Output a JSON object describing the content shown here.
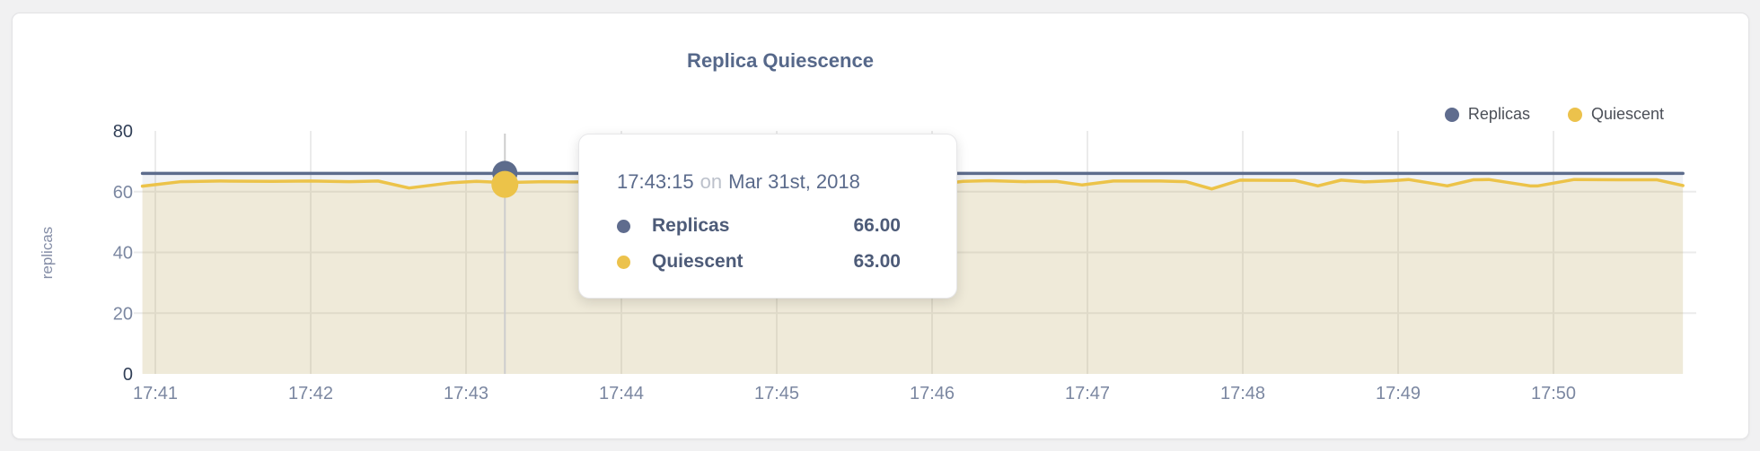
{
  "page": {
    "title": "Replica Quiescence"
  },
  "legend": {
    "items": [
      {
        "label": "Replicas",
        "color": "#5f6c8e"
      },
      {
        "label": "Quiescent",
        "color": "#ecc24c"
      }
    ]
  },
  "tooltip": {
    "time": "17:43:15",
    "connector": "on",
    "date": "Mar 31st, 2018",
    "rows": [
      {
        "label": "Replicas",
        "value": "66.00",
        "color": "#5f6c8e"
      },
      {
        "label": "Quiescent",
        "value": "63.00",
        "color": "#ecc24c"
      }
    ]
  },
  "chart_data": {
    "type": "line",
    "title": "Replica Quiescence",
    "xlabel": "",
    "ylabel": "replicas",
    "ylim": [
      0,
      80
    ],
    "yticks": [
      0,
      20,
      40,
      60,
      80
    ],
    "x_tick_labels": [
      "17:41",
      "17:42",
      "17:43",
      "17:44",
      "17:45",
      "17:46",
      "17:47",
      "17:48",
      "17:49",
      "17:50"
    ],
    "grid": true,
    "legend_position": "top-right",
    "colors": {
      "replicas_line": "#5d6c8c",
      "quiescent_line": "#ecc349",
      "replicas_fill": "rgba(93,108,140,0.09)",
      "quiescent_fill": "rgba(236,195,73,0.16)",
      "gridline": "#ebebeb",
      "crosshair": "#cdcdcd",
      "tick_text": "#7b87a1",
      "tick_text_strong": "#313f57",
      "axis_title_text": "#848da6"
    },
    "series": [
      {
        "name": "Replicas",
        "points": [
          [
            -5,
            66
          ],
          [
            590,
            66
          ]
        ]
      },
      {
        "name": "Quiescent",
        "points": [
          [
            -5,
            61.8
          ],
          [
            10,
            63.3
          ],
          [
            25,
            63.5
          ],
          [
            45,
            63.4
          ],
          [
            60,
            63.5
          ],
          [
            75,
            63.3
          ],
          [
            86,
            63.5
          ],
          [
            98,
            61.2
          ],
          [
            114,
            62.9
          ],
          [
            124,
            63.4
          ],
          [
            135,
            63.0
          ],
          [
            150,
            63.3
          ],
          [
            162,
            63.2
          ],
          [
            175,
            63.4
          ],
          [
            190,
            63.4
          ],
          [
            205,
            62.0
          ],
          [
            220,
            63.3
          ],
          [
            240,
            63.3
          ],
          [
            252,
            61.5
          ],
          [
            268,
            63.2
          ],
          [
            285,
            63.4
          ],
          [
            300,
            62.2
          ],
          [
            312,
            63.4
          ],
          [
            322,
            63.6
          ],
          [
            336,
            63.3
          ],
          [
            348,
            63.4
          ],
          [
            358,
            62.2
          ],
          [
            370,
            63.5
          ],
          [
            388,
            63.5
          ],
          [
            398,
            63.3
          ],
          [
            408,
            60.9
          ],
          [
            419,
            63.8
          ],
          [
            440,
            63.7
          ],
          [
            449,
            61.9
          ],
          [
            458,
            63.8
          ],
          [
            467,
            63.2
          ],
          [
            478,
            63.6
          ],
          [
            484,
            64.0
          ],
          [
            499,
            61.9
          ],
          [
            509,
            63.9
          ],
          [
            515,
            64.0
          ],
          [
            531,
            61.9
          ],
          [
            534,
            61.9
          ],
          [
            548,
            64.0
          ],
          [
            565,
            63.9
          ],
          [
            580,
            63.9
          ],
          [
            590,
            62.0
          ]
        ]
      }
    ],
    "hover": {
      "time_s": 135,
      "time_label": "17:43:15",
      "replicas": 66,
      "quiescent": 63
    }
  }
}
